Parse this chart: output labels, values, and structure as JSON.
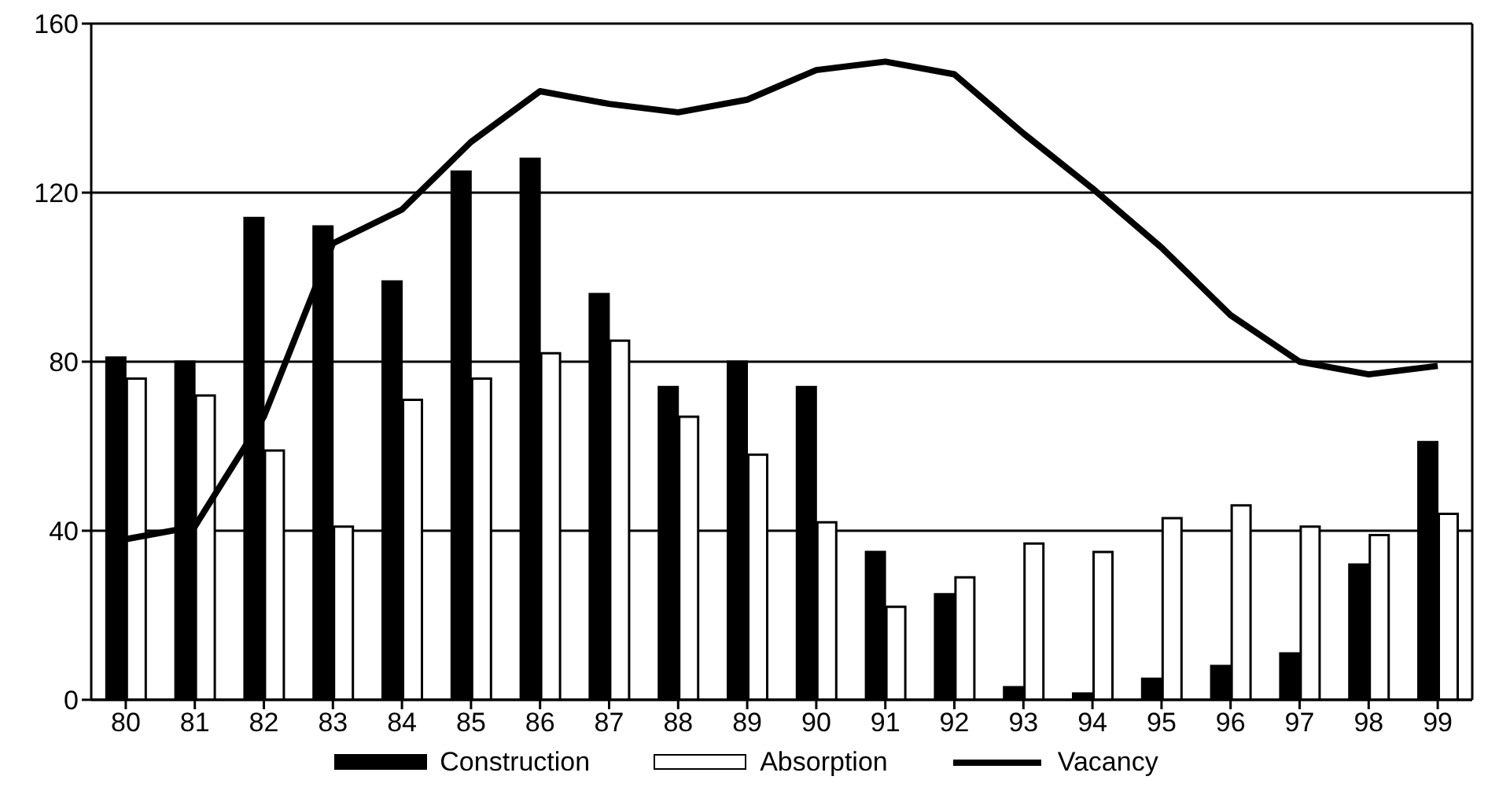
{
  "chart_data": {
    "type": "bar",
    "categories": [
      "80",
      "81",
      "82",
      "83",
      "84",
      "85",
      "86",
      "87",
      "88",
      "89",
      "90",
      "91",
      "92",
      "93",
      "94",
      "95",
      "96",
      "97",
      "98",
      "99"
    ],
    "series": [
      {
        "name": "Construction",
        "color": "#000000",
        "values": [
          81,
          80,
          114,
          112,
          99,
          125,
          128,
          96,
          74,
          80,
          74,
          35,
          25,
          3,
          1.5,
          5,
          8,
          11,
          32,
          61
        ]
      },
      {
        "name": "Absorption",
        "color": "#ffffff",
        "values": [
          76,
          72,
          59,
          41,
          71,
          76,
          82,
          85,
          67,
          58,
          42,
          22,
          29,
          37,
          35,
          43,
          46,
          41,
          39,
          44
        ]
      },
      {
        "name": "Vacancy",
        "type": "line",
        "color": "#000000",
        "values": [
          38,
          41,
          67,
          108,
          116,
          132,
          144,
          141,
          139,
          142,
          149,
          151,
          148,
          134,
          121,
          107,
          91,
          80,
          77,
          79
        ]
      }
    ],
    "ylim": [
      0,
      160
    ],
    "yticks": [
      0,
      40,
      80,
      120,
      160
    ],
    "grid": "y",
    "legend": "bottom",
    "marker": "none",
    "line_style": "solid"
  }
}
